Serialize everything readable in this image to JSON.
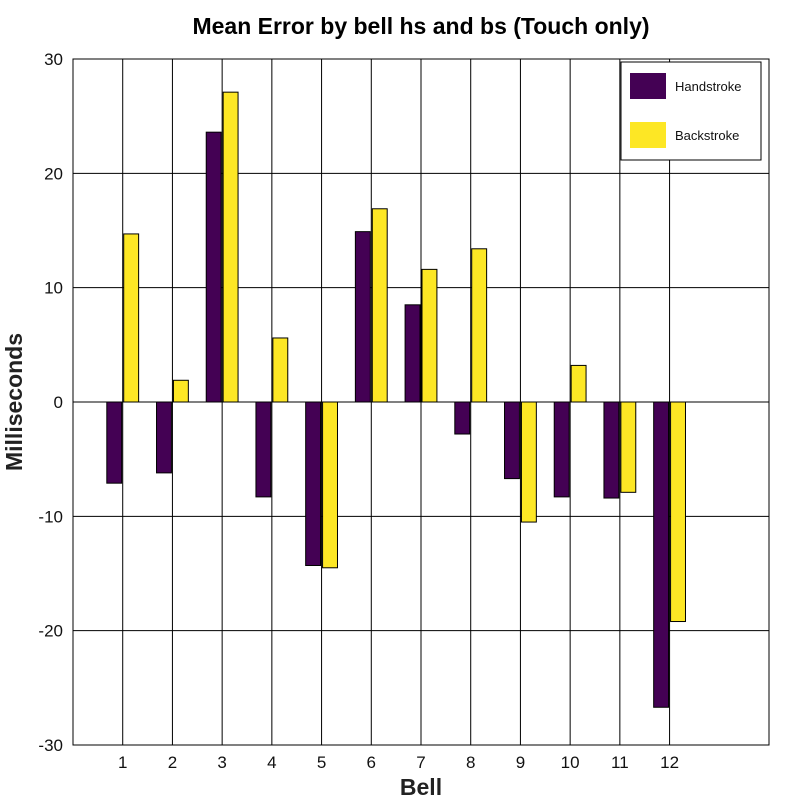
{
  "chart_data": {
    "type": "bar",
    "title": "Mean Error by bell hs and bs (Touch only)",
    "xlabel": "Bell",
    "ylabel": "Milliseconds",
    "categories": [
      "1",
      "2",
      "3",
      "4",
      "5",
      "6",
      "7",
      "8",
      "9",
      "10",
      "11",
      "12"
    ],
    "ylim": [
      -30,
      30
    ],
    "yticks": [
      -30,
      -20,
      -10,
      0,
      10,
      20,
      30
    ],
    "xlim": [
      0,
      14
    ],
    "grid": true,
    "legend_position": "top-right",
    "series": [
      {
        "name": "Handstroke",
        "color": "#440154",
        "values": [
          -7.1,
          -6.2,
          23.6,
          -8.3,
          -14.3,
          14.9,
          8.5,
          -2.8,
          -6.7,
          -8.3,
          -8.4,
          -26.7
        ]
      },
      {
        "name": "Backstroke",
        "color": "#fde725",
        "values": [
          14.7,
          1.9,
          27.1,
          5.6,
          -14.5,
          16.9,
          11.6,
          13.4,
          -10.5,
          3.2,
          -7.9,
          -19.2
        ]
      }
    ]
  }
}
